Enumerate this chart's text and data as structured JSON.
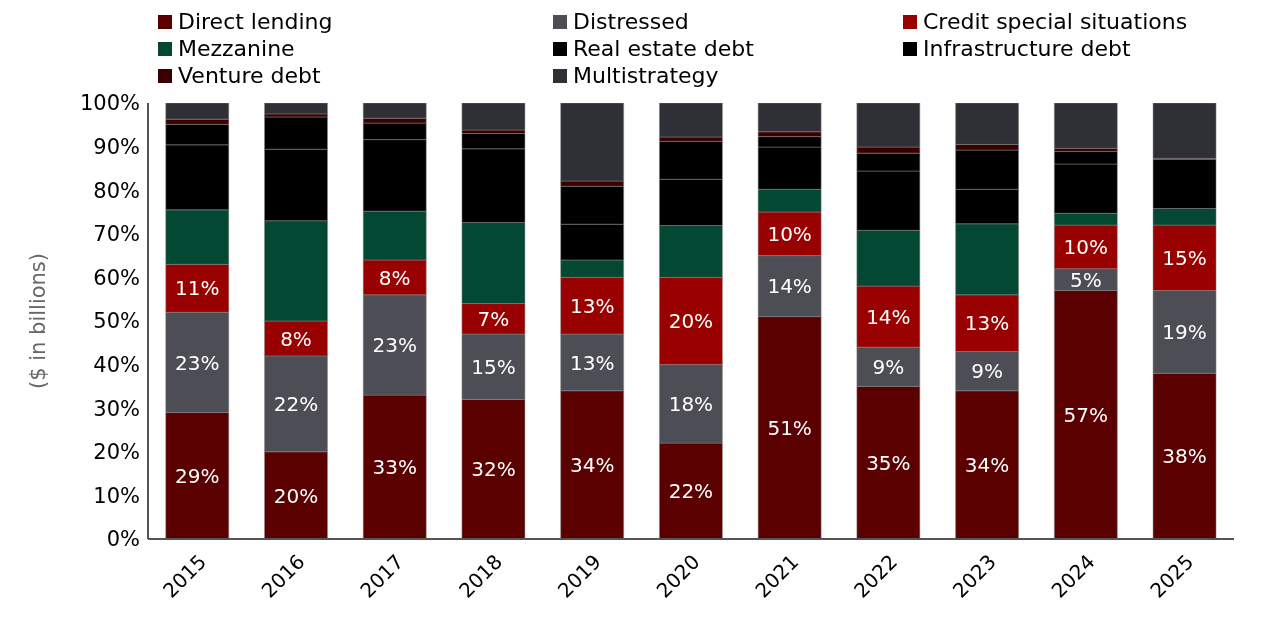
{
  "chart_data": {
    "type": "bar",
    "stacked": true,
    "ylabel": "($ in billions)",
    "categories": [
      "2015",
      "2016",
      "2017",
      "2018",
      "2019",
      "2020",
      "2021",
      "2022",
      "2023",
      "2024",
      "2025"
    ],
    "ylim": [
      0,
      100
    ],
    "yticks": [
      {
        "value": 0,
        "label": "0%"
      },
      {
        "value": 10,
        "label": "10%"
      },
      {
        "value": 20,
        "label": "20%"
      },
      {
        "value": 30,
        "label": "30%"
      },
      {
        "value": 40,
        "label": "40%"
      },
      {
        "value": 50,
        "label": "50%"
      },
      {
        "value": 60,
        "label": "60%"
      },
      {
        "value": 70,
        "label": "70%"
      },
      {
        "value": 80,
        "label": "80%"
      },
      {
        "value": 90,
        "label": "90%"
      },
      {
        "value": 100,
        "label": "100%"
      }
    ],
    "grid": false,
    "legend": "top",
    "series": [
      {
        "name": "Direct lending",
        "color": "#5a0000",
        "values": [
          29,
          20,
          33,
          32,
          34,
          22,
          51,
          35,
          34,
          57,
          38
        ],
        "value_labels": [
          "29%",
          "20%",
          "33%",
          "32%",
          "34%",
          "22%",
          "51%",
          "35%",
          "34%",
          "57%",
          "38%"
        ]
      },
      {
        "name": "Distressed",
        "color": "#4d4d55",
        "values": [
          23,
          22,
          23,
          15,
          13,
          18,
          14,
          9,
          9,
          5,
          19
        ],
        "value_labels": [
          "23%",
          "22%",
          "23%",
          "15%",
          "13%",
          "18%",
          "14%",
          "9%",
          "9%",
          "5%",
          "19%"
        ]
      },
      {
        "name": "Credit special situations",
        "color": "#990000",
        "values": [
          11,
          8,
          8,
          7,
          13,
          20,
          10,
          14,
          13,
          10,
          15
        ],
        "value_labels": [
          "11%",
          "8%",
          "8%",
          "7%",
          "13%",
          "20%",
          "10%",
          "14%",
          "13%",
          "10%",
          "15%"
        ]
      },
      {
        "name": "Mezzanine",
        "color": "#034832",
        "values": [
          12.5,
          23,
          11.2,
          18.6,
          4,
          11.9,
          5.2,
          12.8,
          16.3,
          2.7,
          3.8
        ]
      },
      {
        "name": "Real estate debt",
        "color": "#000000",
        "values": [
          14.9,
          16.4,
          16.4,
          16.9,
          8.2,
          10.6,
          9.7,
          13.6,
          7.9,
          11.3,
          11.3
        ]
      },
      {
        "name": "Infrastructure debt",
        "color": "#000000",
        "values": [
          4.7,
          7.4,
          3.8,
          3.5,
          8.7,
          8.7,
          2.4,
          4.1,
          9,
          2.9,
          0
        ]
      },
      {
        "name": "Venture debt",
        "color": "#3a0000",
        "values": [
          1.2,
          0.7,
          1.1,
          0.8,
          1.2,
          1,
          1.1,
          1.4,
          1.3,
          0.7,
          0.2
        ]
      },
      {
        "name": "Multistrategy",
        "color": "#2f3035",
        "values": [
          3.7,
          2.6,
          3.6,
          6.2,
          17.9,
          7.8,
          6.6,
          10.1,
          9.5,
          10.4,
          12.7
        ]
      }
    ]
  }
}
